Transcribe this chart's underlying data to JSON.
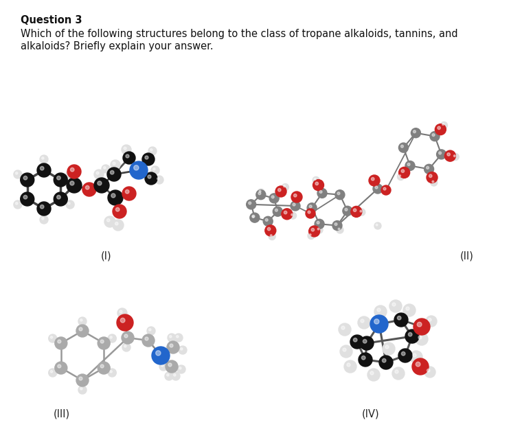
{
  "title": "Question 3",
  "title_fontsize": 10.5,
  "title_fontweight": "bold",
  "question_text_line1": "Which of the following structures belong to the class of tropane alkaloids, tannins, and",
  "question_text_line2": "alkaloids? Briefly explain your answer.",
  "question_fontsize": 10.5,
  "labels": [
    "(I)",
    "(II)",
    "(III)",
    "(IV)"
  ],
  "label_fontsize": 10.5,
  "background_color": "#ffffff",
  "fig_width": 7.6,
  "fig_height": 6.41,
  "C_black": "#111111",
  "C_gray": "#808080",
  "C_lgray": "#aaaaaa",
  "O_red": "#cc2222",
  "N_blue": "#2266cc",
  "H_white": "#e0e0e0",
  "H_offwhite": "#d8d8d8"
}
